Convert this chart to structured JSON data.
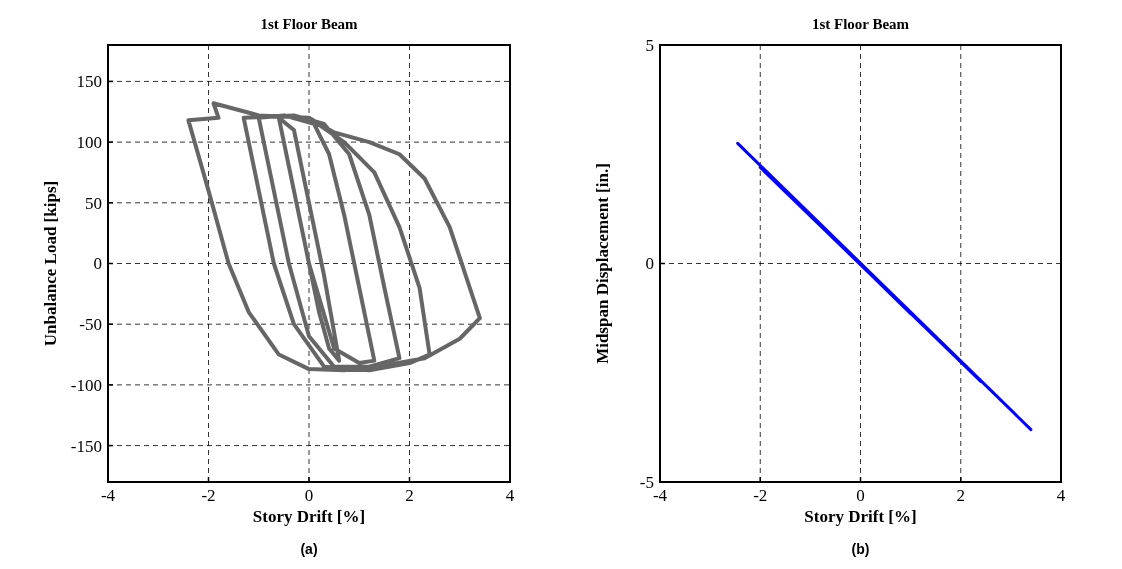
{
  "chart_data": [
    {
      "type": "line",
      "title": "1st Floor Beam",
      "xlabel": "Story Drift [%]",
      "ylabel": "Unbalance Load [kips]",
      "annotations": [
        "(a)"
      ],
      "xlim": [
        -4,
        4
      ],
      "ylim": [
        -180,
        180
      ],
      "xticks": [
        -4,
        -2,
        0,
        2,
        4
      ],
      "yticks": [
        -150,
        -100,
        -50,
        0,
        50,
        100,
        150
      ],
      "grid": true,
      "series": [
        {
          "color": "#666666",
          "x": [
            0,
            0.2,
            0.4,
            0.6,
            0.3,
            0,
            -0.3,
            -0.6,
            -0.3,
            0,
            0.5,
            1.0,
            1.3,
            1.0,
            0.7,
            0.4,
            0.1,
            -0.5,
            -1.0,
            -0.7,
            -0.4,
            0,
            0.5,
            1.2,
            1.8,
            1.5,
            1.2,
            0.8,
            0.3,
            -0.3,
            -1.3,
            -1.0,
            -0.7,
            -0.3,
            0.3,
            1.2,
            2.0,
            2.4,
            2.2,
            1.8,
            1.3,
            0.7,
            0,
            -1.0,
            -1.9,
            -1.8,
            -2.4,
            -2.0,
            -1.6,
            -1.2,
            -0.6,
            0,
            0.7,
            1.5,
            2.3,
            3.0,
            3.4,
            3.2,
            2.8,
            2.3,
            1.8,
            1.2,
            0.5,
            0
          ],
          "values": [
            0,
            -40,
            -70,
            -80,
            -10,
            50,
            110,
            120,
            60,
            0,
            -70,
            -82,
            -80,
            -20,
            40,
            90,
            115,
            122,
            120,
            60,
            0,
            -60,
            -85,
            -85,
            -78,
            -20,
            40,
            90,
            115,
            122,
            120,
            60,
            0,
            -50,
            -85,
            -88,
            -82,
            -75,
            -20,
            30,
            75,
            100,
            120,
            122,
            132,
            120,
            118,
            60,
            0,
            -40,
            -75,
            -87,
            -88,
            -84,
            -78,
            -62,
            -45,
            -20,
            30,
            70,
            90,
            100,
            108,
            120
          ]
        }
      ]
    },
    {
      "type": "line",
      "title": "1st Floor Beam",
      "xlabel": "Story Drift [%]",
      "ylabel": "Midspan Displacement [in.]",
      "annotations": [
        "(b)"
      ],
      "xlim": [
        -4,
        4
      ],
      "ylim": [
        -5,
        5
      ],
      "xticks": [
        -4,
        -2,
        0,
        2,
        4
      ],
      "yticks": [
        -5,
        0,
        5
      ],
      "grid": true,
      "series": [
        {
          "color": "#0000ff",
          "x": [
            0,
            1.0,
            -1.0,
            1.5,
            -1.5,
            2.0,
            -2.0,
            2.4,
            -2.45,
            3.4
          ],
          "values": [
            0,
            -1.15,
            1.1,
            -1.7,
            1.65,
            -2.25,
            2.2,
            -2.7,
            2.75,
            -3.8
          ]
        }
      ]
    }
  ]
}
